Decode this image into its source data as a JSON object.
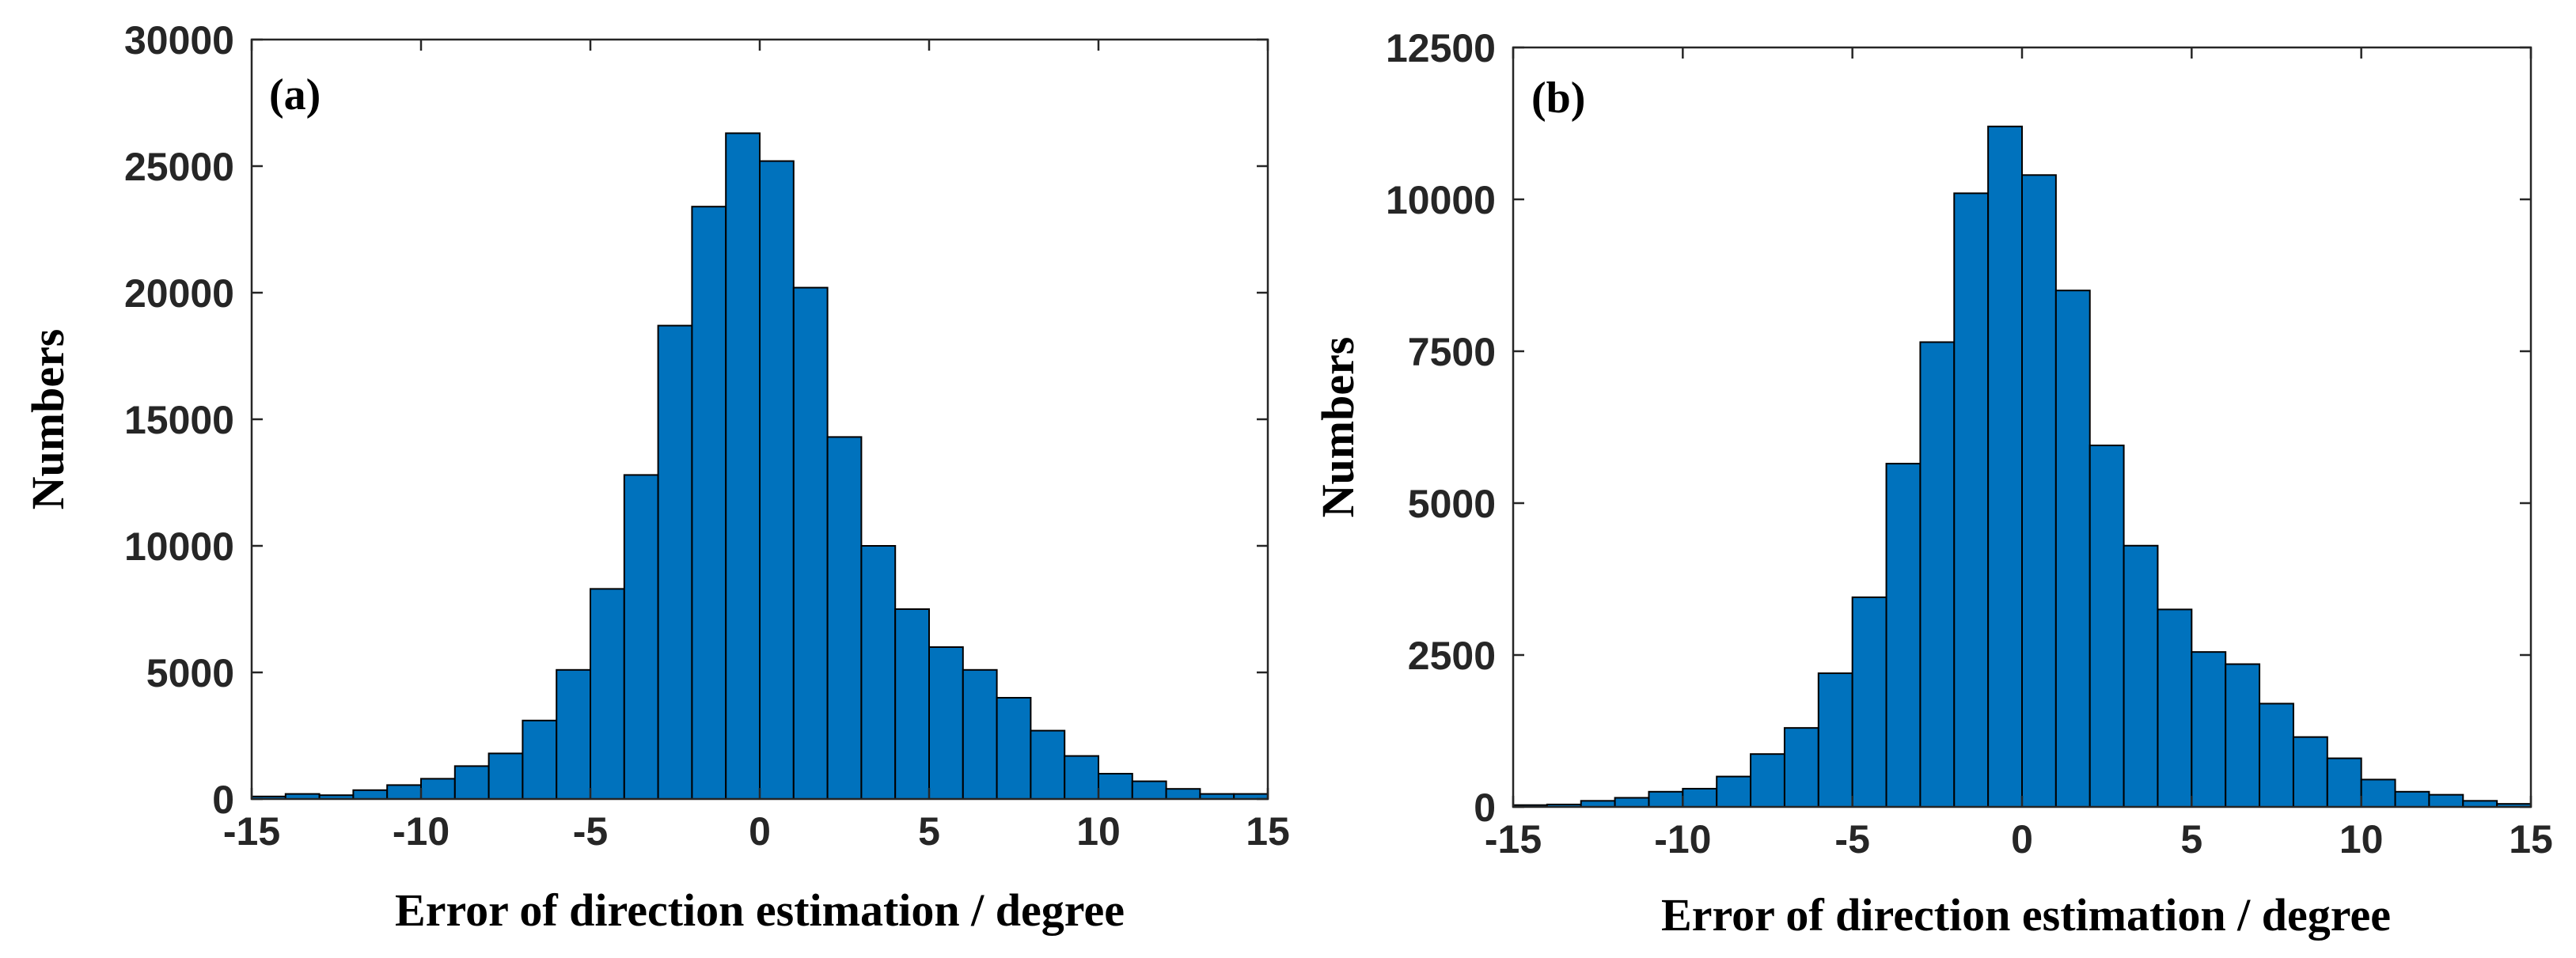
{
  "colors": {
    "bar_fill": "#0072BD",
    "bar_edge": "#000000",
    "axis": "#262626"
  },
  "chart_data": [
    {
      "type": "bar",
      "panel_label": "(a)",
      "xlabel": "Error of direction estimation / degree",
      "ylabel": "Numbers",
      "xlim": [
        -15,
        15
      ],
      "ylim": [
        0,
        30000
      ],
      "xticks": [
        -15,
        -10,
        -5,
        0,
        5,
        10,
        15
      ],
      "yticks": [
        0,
        5000,
        10000,
        15000,
        20000,
        25000,
        30000
      ],
      "bin_edges": [
        -15,
        -14,
        -13,
        -12,
        -11,
        -10,
        -9,
        -8,
        -7,
        -6,
        -5,
        -4,
        -3,
        -2,
        -1,
        0,
        1,
        2,
        3,
        4,
        5,
        6,
        7,
        8,
        9,
        10,
        11,
        12,
        13,
        14,
        15
      ],
      "values": [
        100,
        200,
        150,
        350,
        550,
        800,
        1300,
        1800,
        3100,
        5100,
        8300,
        12800,
        18700,
        23400,
        26300,
        25200,
        20200,
        14300,
        10000,
        7500,
        6000,
        5100,
        4000,
        2700,
        1700,
        1000,
        700,
        400,
        200,
        200
      ]
    },
    {
      "type": "bar",
      "panel_label": "(b)",
      "xlabel": "Error of direction estimation / degree",
      "ylabel": "Numbers",
      "xlim": [
        -15,
        15
      ],
      "ylim": [
        0,
        12500
      ],
      "xticks": [
        -15,
        -10,
        -5,
        0,
        5,
        10,
        15
      ],
      "yticks": [
        0,
        2500,
        5000,
        7500,
        10000,
        12500
      ],
      "bin_edges": [
        -15,
        -14,
        -13,
        -12,
        -11,
        -10,
        -9,
        -8,
        -7,
        -6,
        -5,
        -4,
        -3,
        -2,
        -1,
        0,
        1,
        2,
        3,
        4,
        5,
        6,
        7,
        8,
        9,
        10,
        11,
        12,
        13,
        14,
        15
      ],
      "values": [
        30,
        40,
        100,
        150,
        250,
        300,
        500,
        870,
        1300,
        2200,
        3450,
        5650,
        7650,
        10100,
        11200,
        10400,
        8500,
        5950,
        4300,
        3250,
        2550,
        2350,
        1700,
        1150,
        800,
        450,
        250,
        200,
        100,
        50
      ]
    }
  ]
}
